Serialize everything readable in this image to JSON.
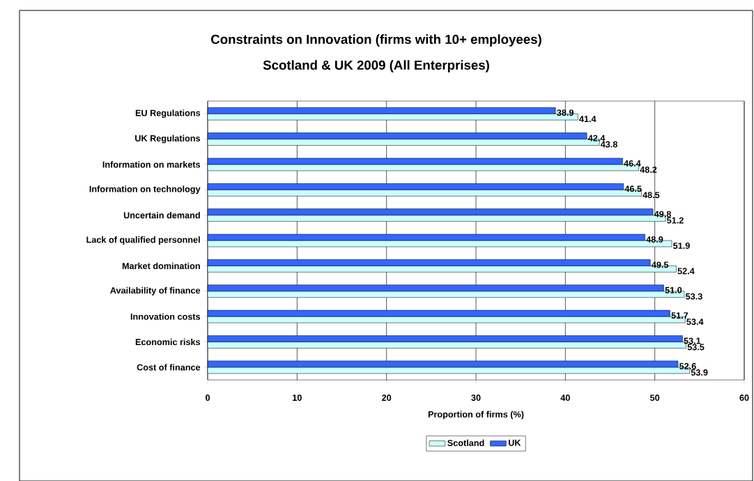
{
  "chart_data": {
    "type": "bar",
    "orientation": "horizontal",
    "title": "Constraints on Innovation (firms with 10+ employees)",
    "subtitle": "Scotland & UK 2009 (All Enterprises)",
    "xlabel": "Proportion of firms (%)",
    "categories": [
      "EU Regulations",
      "UK Regulations",
      "Information on markets",
      "Information on technology",
      "Uncertain demand",
      "Lack of qualified personnel",
      "Market domination",
      "Availability of finance",
      "Innovation costs",
      "Economic risks",
      "Cost of finance"
    ],
    "series": [
      {
        "name": "Scotland",
        "color": "#ccffff",
        "values": [
          41.4,
          43.8,
          48.2,
          48.5,
          51.2,
          51.9,
          52.4,
          53.3,
          53.4,
          53.5,
          53.9
        ],
        "value_labels": [
          "41.4",
          "43.8",
          "48.2",
          "48.5",
          "51.2",
          "51.9",
          "52.4",
          "53.3",
          "53.4",
          "53.5",
          "53.9"
        ]
      },
      {
        "name": "UK",
        "color": "#3366ff",
        "values": [
          38.9,
          42.4,
          46.4,
          46.5,
          49.8,
          48.9,
          49.5,
          51.0,
          51.7,
          53.1,
          52.6
        ],
        "value_labels": [
          "38.9",
          "42.4",
          "46.4",
          "46.5",
          "49.8",
          "48.9",
          "49.5",
          "51.0",
          "51.7",
          "53.1",
          "52.6"
        ]
      }
    ],
    "xlim": [
      0,
      60
    ],
    "xticks": [
      0,
      10,
      20,
      30,
      40,
      50,
      60
    ],
    "grid": "x",
    "legend": "bottom"
  }
}
